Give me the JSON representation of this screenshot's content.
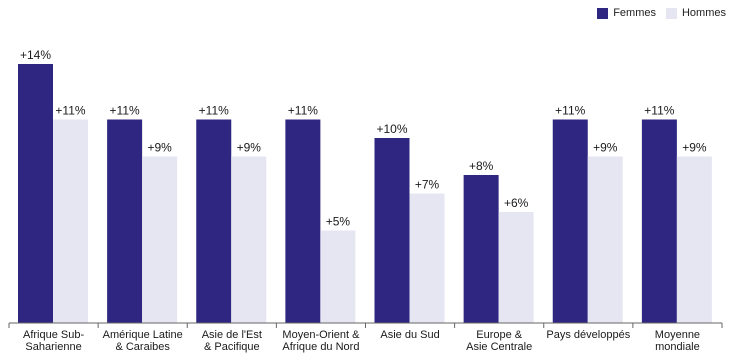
{
  "colors": {
    "femmes": "#2e2680",
    "hommes": "#e6e6f2",
    "axis": "#666666"
  },
  "legend": [
    {
      "label": "Femmes",
      "color": "#2e2680"
    },
    {
      "label": "Hommes",
      "color": "#e6e6f2"
    }
  ],
  "chart_data": {
    "type": "bar",
    "title": "",
    "xlabel": "",
    "ylabel": "",
    "ylim": [
      0,
      14
    ],
    "grid": false,
    "legend_position": "top-right",
    "categories": [
      [
        "Afrique Sub-",
        "Saharienne"
      ],
      [
        "Amérique Latine",
        "& Caraibes"
      ],
      [
        "Asie de l'Est",
        "& Pacifique"
      ],
      [
        "Moyen-Orient &",
        "Afrique du Nord"
      ],
      [
        "Asie du Sud"
      ],
      [
        "Europe &",
        "Asie Centrale"
      ],
      [
        "Pays développés"
      ],
      [
        "Moyenne",
        "mondiale"
      ]
    ],
    "series": [
      {
        "name": "Femmes",
        "color": "#2e2680",
        "values": [
          14,
          11,
          11,
          11,
          10,
          8,
          11,
          11
        ],
        "labels": [
          "+14%",
          "+11%",
          "+11%",
          "+11%",
          "+10%",
          "+8%",
          "+11%",
          "+11%"
        ]
      },
      {
        "name": "Hommes",
        "color": "#e6e6f2",
        "values": [
          11,
          9,
          9,
          5,
          7,
          6,
          9,
          9
        ],
        "labels": [
          "+11%",
          "+9%",
          "+9%",
          "+5%",
          "+7%",
          "+6%",
          "+9%",
          "+9%"
        ]
      }
    ]
  }
}
